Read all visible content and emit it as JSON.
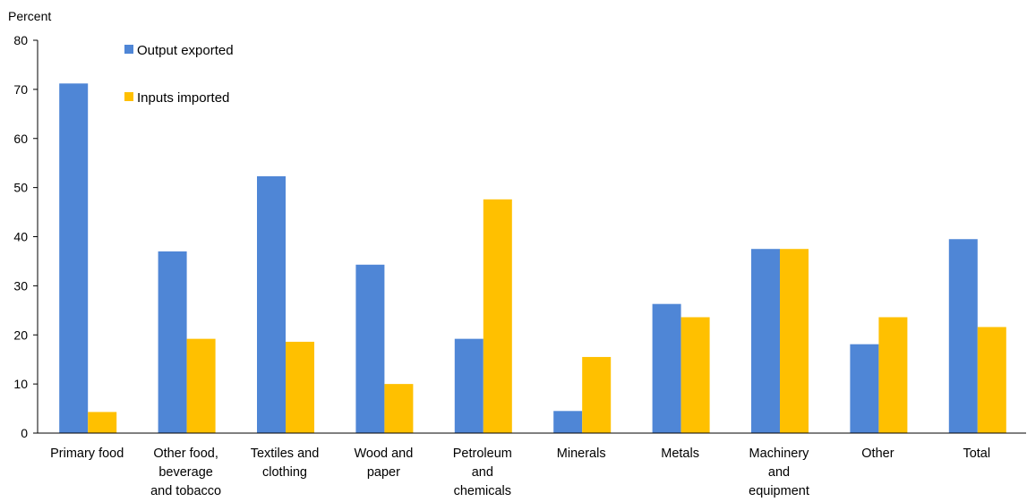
{
  "chart_data": {
    "type": "bar",
    "ylabel": "Percent",
    "ylim": [
      0,
      80
    ],
    "yticks": [
      0,
      10,
      20,
      30,
      40,
      50,
      60,
      70,
      80
    ],
    "grid": false,
    "legend_position": "top-left",
    "categories": [
      [
        "Primary food"
      ],
      [
        "Other food,",
        "beverage",
        "and tobacco"
      ],
      [
        "Textiles and",
        "clothing"
      ],
      [
        "Wood and",
        "paper"
      ],
      [
        "Petroleum",
        "and",
        "chemicals"
      ],
      [
        "Minerals"
      ],
      [
        "Metals"
      ],
      [
        "Machinery",
        "and",
        "equipment"
      ],
      [
        "Other"
      ],
      [
        "Total"
      ]
    ],
    "series": [
      {
        "name": "Output exported",
        "color": "#4F86D6",
        "values": [
          71.2,
          37.0,
          52.3,
          34.3,
          19.2,
          4.5,
          26.3,
          37.5,
          18.1,
          39.5
        ]
      },
      {
        "name": "Inputs imported",
        "color": "#FFC000",
        "values": [
          4.3,
          19.2,
          18.6,
          10.0,
          47.6,
          15.5,
          23.6,
          37.5,
          23.6,
          21.6
        ]
      }
    ]
  }
}
